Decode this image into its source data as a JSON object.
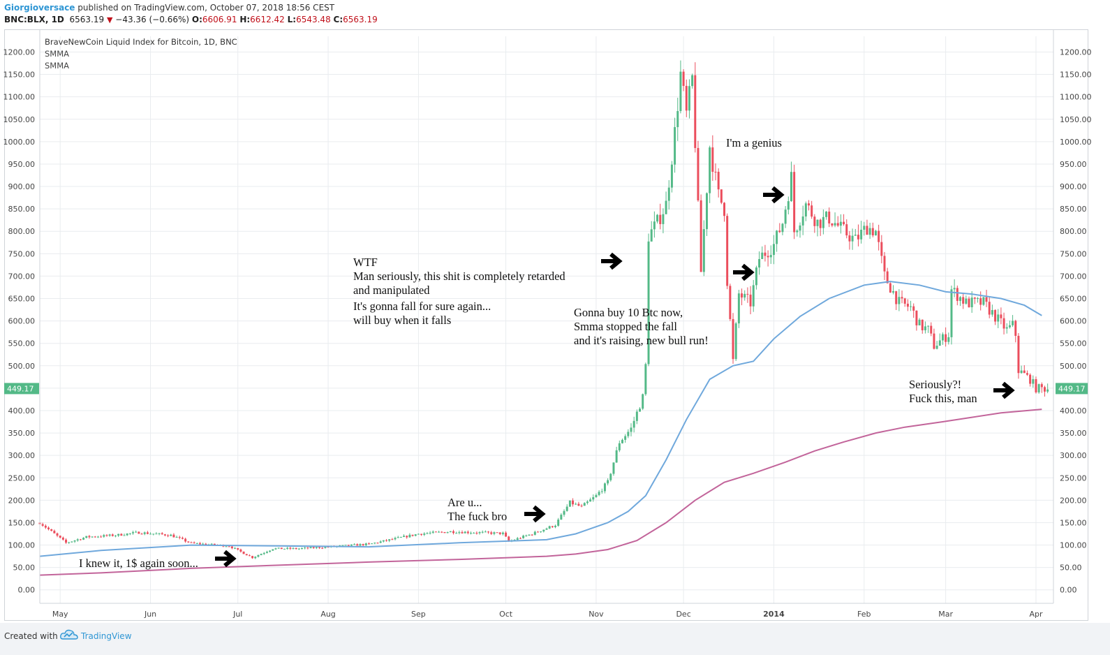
{
  "header": {
    "author": "Giorgioversace",
    "published": "published on TradingView.com, October 07, 2018 18:56 CEST",
    "symbol": "BNC:BLX, 1D",
    "last": "6563.19",
    "change": "−43.36 (−0.66%)",
    "o_label": "O:",
    "o_value": "6606.91",
    "h_label": "H:",
    "h_value": "6612.42",
    "l_label": "L:",
    "l_value": "6543.48",
    "c_label": "C:",
    "c_value": "6563.19"
  },
  "legend": {
    "title": "BraveNewCoin Liquid Index for Bitcoin, 1D, BNC",
    "series1": "SMMA",
    "series2": "SMMA"
  },
  "price_tag": "449.17",
  "annotations": [
    {
      "name": "ann-knew-it",
      "lines": [
        "I knew it, 1$ again soon..."
      ]
    },
    {
      "name": "ann-are-u",
      "lines": [
        "Are u...",
        "The fuck bro"
      ]
    },
    {
      "name": "ann-wtf",
      "lines": [
        "WTF",
        "Man seriously, this shit is completely retarded",
        "and manipulated"
      ]
    },
    {
      "name": "ann-gonna-fall",
      "lines": [
        "It's gonna fall for sure again...",
        "will buy when it falls"
      ]
    },
    {
      "name": "ann-gonna-buy",
      "lines": [
        "Gonna buy 10 Btc now,",
        "Smma stopped the fall",
        "and it's raising, new bull run!"
      ]
    },
    {
      "name": "ann-genius",
      "lines": [
        "I'm a genius"
      ]
    },
    {
      "name": "ann-seriously",
      "lines": [
        "Seriously?!",
        "Fuck this, man"
      ]
    }
  ],
  "footer": {
    "created_with": "Created with",
    "brand": "TradingView"
  },
  "chart_data": {
    "type": "candlestick",
    "title": "BraveNewCoin Liquid Index for Bitcoin, 1D, BNC",
    "ylim": [
      -30,
      1235
    ],
    "y_ticks": [
      "0.00",
      "50.00",
      "100.00",
      "150.00",
      "200.00",
      "250.00",
      "300.00",
      "350.00",
      "400.00",
      "450.00",
      "500.00",
      "550.00",
      "600.00",
      "650.00",
      "700.00",
      "750.00",
      "800.00",
      "850.00",
      "900.00",
      "950.00",
      "1000.00",
      "1050.00",
      "1100.00",
      "1150.00",
      "1200.00"
    ],
    "x_ticks": [
      {
        "label": "May",
        "date": "2013-05-01",
        "bold": false
      },
      {
        "label": "Jun",
        "date": "2013-06-01",
        "bold": false
      },
      {
        "label": "Jul",
        "date": "2013-07-01",
        "bold": false
      },
      {
        "label": "Aug",
        "date": "2013-08-01",
        "bold": false
      },
      {
        "label": "Sep",
        "date": "2013-09-01",
        "bold": false
      },
      {
        "label": "Oct",
        "date": "2013-10-01",
        "bold": false
      },
      {
        "label": "Nov",
        "date": "2013-11-01",
        "bold": false
      },
      {
        "label": "Dec",
        "date": "2013-12-01",
        "bold": false
      },
      {
        "label": "2014",
        "date": "2014-01-01",
        "bold": true
      },
      {
        "label": "Feb",
        "date": "2014-02-01",
        "bold": false
      },
      {
        "label": "Mar",
        "date": "2014-03-01",
        "bold": false
      },
      {
        "label": "Apr",
        "date": "2014-04-01",
        "bold": false
      }
    ],
    "x_range": [
      "2013-04-24",
      "2014-04-07"
    ],
    "colors": {
      "up": "#53b987",
      "down": "#eb4d5c",
      "smma_fast": "#6fa8dc",
      "smma_slow": "#c2649a",
      "grid": "#e9ecef",
      "axis_text": "#444444",
      "price_tag": "#53b987"
    },
    "price_level": 449.17,
    "price_path": [
      [
        "2013-04-24",
        150
      ],
      [
        "2013-05-03",
        105
      ],
      [
        "2013-05-10",
        118
      ],
      [
        "2013-05-20",
        122
      ],
      [
        "2013-05-28",
        128
      ],
      [
        "2013-06-08",
        122
      ],
      [
        "2013-06-15",
        104
      ],
      [
        "2013-06-28",
        98
      ],
      [
        "2013-07-06",
        72
      ],
      [
        "2013-07-13",
        92
      ],
      [
        "2013-07-22",
        92
      ],
      [
        "2013-08-01",
        96
      ],
      [
        "2013-08-15",
        102
      ],
      [
        "2013-09-01",
        125
      ],
      [
        "2013-09-12",
        130
      ],
      [
        "2013-09-30",
        126
      ],
      [
        "2013-10-02",
        108
      ],
      [
        "2013-10-10",
        125
      ],
      [
        "2013-10-18",
        145
      ],
      [
        "2013-10-23",
        195
      ],
      [
        "2013-10-27",
        185
      ],
      [
        "2013-11-01",
        210
      ],
      [
        "2013-11-05",
        240
      ],
      [
        "2013-11-09",
        330
      ],
      [
        "2013-11-13",
        360
      ],
      [
        "2013-11-17",
        430
      ],
      [
        "2013-11-18",
        500
      ],
      [
        "2013-11-19",
        790
      ],
      [
        "2013-11-22",
        820
      ],
      [
        "2013-11-25",
        860
      ],
      [
        "2013-11-28",
        1020
      ],
      [
        "2013-11-30",
        1150
      ],
      [
        "2013-12-02",
        1060
      ],
      [
        "2013-12-04",
        1140
      ],
      [
        "2013-12-05",
        1000
      ],
      [
        "2013-12-06",
        850
      ],
      [
        "2013-12-07",
        710
      ],
      [
        "2013-12-10",
        990
      ],
      [
        "2013-12-13",
        880
      ],
      [
        "2013-12-15",
        850
      ],
      [
        "2013-12-16",
        690
      ],
      [
        "2013-12-18",
        510
      ],
      [
        "2013-12-20",
        660
      ],
      [
        "2013-12-24",
        640
      ],
      [
        "2013-12-27",
        740
      ],
      [
        "2014-01-01",
        770
      ],
      [
        "2014-01-04",
        820
      ],
      [
        "2014-01-07",
        920
      ],
      [
        "2014-01-08",
        800
      ],
      [
        "2014-01-12",
        860
      ],
      [
        "2014-01-16",
        820
      ],
      [
        "2014-01-20",
        830
      ],
      [
        "2014-01-25",
        800
      ],
      [
        "2014-01-29",
        780
      ],
      [
        "2014-02-02",
        810
      ],
      [
        "2014-02-05",
        800
      ],
      [
        "2014-02-08",
        700
      ],
      [
        "2014-02-13",
        640
      ],
      [
        "2014-02-17",
        630
      ],
      [
        "2014-02-20",
        590
      ],
      [
        "2014-02-23",
        580
      ],
      [
        "2014-02-25",
        545
      ],
      [
        "2014-02-28",
        560
      ],
      [
        "2014-03-02",
        570
      ],
      [
        "2014-03-03",
        670
      ],
      [
        "2014-03-08",
        640
      ],
      [
        "2014-03-14",
        640
      ],
      [
        "2014-03-18",
        610
      ],
      [
        "2014-03-22",
        580
      ],
      [
        "2014-03-24",
        590
      ],
      [
        "2014-03-25",
        570
      ],
      [
        "2014-03-26",
        490
      ],
      [
        "2014-03-30",
        470
      ],
      [
        "2014-04-01",
        450
      ],
      [
        "2014-04-05",
        449
      ]
    ],
    "series": [
      {
        "kind": "smma_fast",
        "points": [
          [
            "2013-04-24",
            75
          ],
          [
            "2013-05-15",
            88
          ],
          [
            "2013-06-15",
            100
          ],
          [
            "2013-07-15",
            98
          ],
          [
            "2013-08-15",
            96
          ],
          [
            "2013-09-15",
            105
          ],
          [
            "2013-10-15",
            112
          ],
          [
            "2013-10-25",
            125
          ],
          [
            "2013-11-05",
            150
          ],
          [
            "2013-11-12",
            175
          ],
          [
            "2013-11-18",
            210
          ],
          [
            "2013-11-25",
            290
          ],
          [
            "2013-12-02",
            380
          ],
          [
            "2013-12-10",
            470
          ],
          [
            "2013-12-18",
            500
          ],
          [
            "2013-12-25",
            510
          ],
          [
            "2014-01-01",
            560
          ],
          [
            "2014-01-10",
            610
          ],
          [
            "2014-01-20",
            650
          ],
          [
            "2014-02-01",
            680
          ],
          [
            "2014-02-10",
            688
          ],
          [
            "2014-02-20",
            680
          ],
          [
            "2014-03-01",
            665
          ],
          [
            "2014-03-10",
            660
          ],
          [
            "2014-03-20",
            650
          ],
          [
            "2014-03-28",
            635
          ],
          [
            "2014-04-03",
            612
          ]
        ]
      },
      {
        "kind": "smma_slow",
        "points": [
          [
            "2013-04-24",
            33
          ],
          [
            "2013-05-15",
            38
          ],
          [
            "2013-06-15",
            48
          ],
          [
            "2013-07-15",
            55
          ],
          [
            "2013-08-15",
            62
          ],
          [
            "2013-09-15",
            68
          ],
          [
            "2013-10-15",
            75
          ],
          [
            "2013-10-25",
            80
          ],
          [
            "2013-11-05",
            90
          ],
          [
            "2013-11-15",
            110
          ],
          [
            "2013-11-25",
            150
          ],
          [
            "2013-12-05",
            200
          ],
          [
            "2013-12-15",
            240
          ],
          [
            "2013-12-25",
            260
          ],
          [
            "2014-01-05",
            285
          ],
          [
            "2014-01-15",
            310
          ],
          [
            "2014-01-25",
            330
          ],
          [
            "2014-02-05",
            350
          ],
          [
            "2014-02-15",
            363
          ],
          [
            "2014-02-28",
            375
          ],
          [
            "2014-03-10",
            385
          ],
          [
            "2014-03-20",
            395
          ],
          [
            "2014-04-03",
            403
          ]
        ]
      }
    ]
  }
}
